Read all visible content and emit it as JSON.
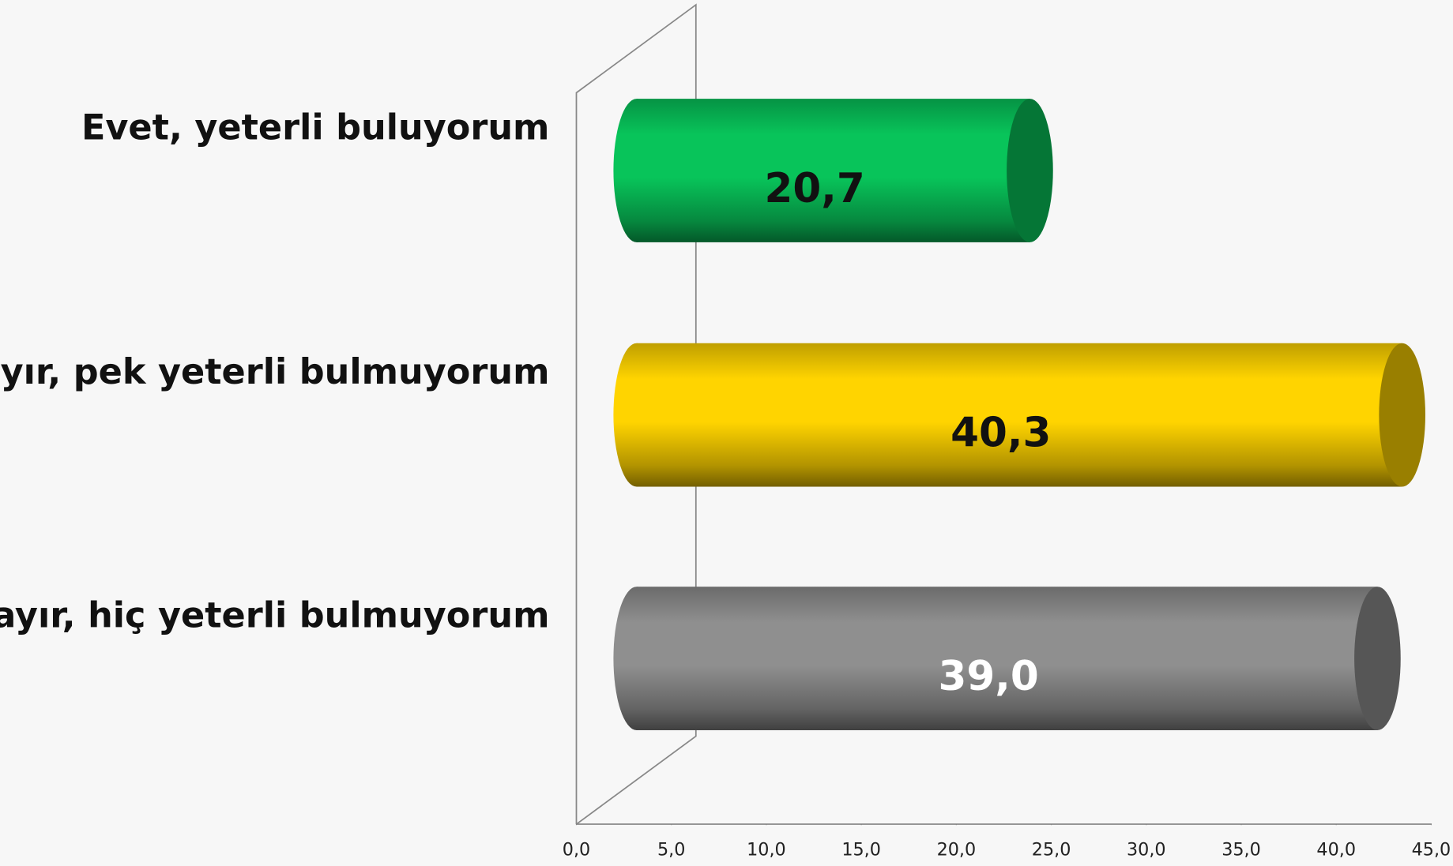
{
  "chart_data": {
    "type": "bar",
    "orientation": "horizontal",
    "categories": [
      "Evet, yeterli buluyorum",
      "Hayır, pek yeterli bulmuyorum",
      "Hayır, hiç yeterli bulmuyorum"
    ],
    "values": [
      20.7,
      40.3,
      39.0
    ],
    "value_labels": [
      "20,7",
      "40,3",
      "39,0"
    ],
    "colors": [
      "#08c45a",
      "#ffd400",
      "#8f8f8f"
    ],
    "label_colors": [
      "#111111",
      "#111111",
      "#ffffff"
    ],
    "xlim": [
      0,
      45
    ],
    "xticks": [
      {
        "value": 0,
        "label": "0,0"
      },
      {
        "value": 5,
        "label": "5,0"
      },
      {
        "value": 10,
        "label": "10,0"
      },
      {
        "value": 15,
        "label": "15,0"
      },
      {
        "value": 20,
        "label": "20,0"
      },
      {
        "value": 25,
        "label": "25,0"
      },
      {
        "value": 30,
        "label": "30,0"
      },
      {
        "value": 35,
        "label": "35,0"
      },
      {
        "value": 40,
        "label": "40,0"
      },
      {
        "value": 45,
        "label": "45,0"
      }
    ]
  }
}
